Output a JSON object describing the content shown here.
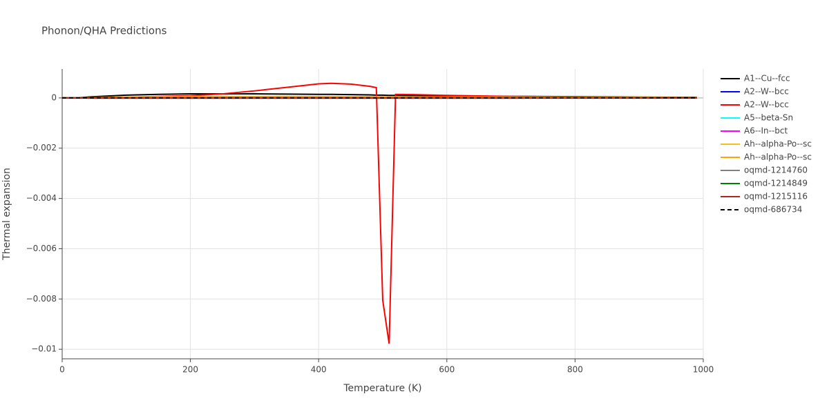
{
  "chart_data": {
    "type": "line",
    "title": "Phonon/QHA Predictions",
    "x_label": "Temperature (K)",
    "y_label": "Thermal expansion",
    "x": [
      0,
      20,
      50,
      100,
      150,
      200,
      250,
      300,
      350,
      400,
      420,
      450,
      480,
      490,
      500,
      510,
      520,
      550,
      600,
      700,
      800,
      900,
      990
    ],
    "series": [
      {
        "name": "A1--Cu--fcc",
        "color": "#000000",
        "values": [
          0,
          0,
          5e-05,
          0.00011,
          0.00014,
          0.00016,
          0.00016,
          0.00016,
          0.00015,
          0.00014,
          0.00014,
          0.00013,
          0.00012,
          0.00011,
          0.00011,
          0.0001,
          0.0001,
          9e-05,
          8e-05,
          6e-05,
          5e-05,
          3e-05,
          2e-05
        ]
      },
      {
        "name": "A2--W--bcc",
        "color": "#0000ff",
        "values": [
          0,
          0,
          0,
          0,
          0,
          0,
          0,
          0,
          0,
          0,
          0,
          0,
          0,
          0,
          0,
          0,
          0,
          0,
          0,
          0,
          0,
          0,
          0
        ]
      },
      {
        "name": "A2--W--bcc",
        "color": "#ff0000",
        "values": [
          0,
          0,
          1e-05,
          3e-05,
          6e-05,
          9e-05,
          0.00016,
          0.00028,
          0.00042,
          0.00056,
          0.00058,
          0.00055,
          0.00046,
          0.00041,
          -0.00805,
          -0.00978,
          0.00014,
          0.00013,
          0.0001,
          6e-05,
          4e-05,
          2e-05,
          1e-05
        ]
      },
      {
        "name": "A5--beta-Sn",
        "color": "#00ffff",
        "values": [
          0,
          0,
          0,
          0,
          0,
          0,
          0,
          0,
          0,
          0,
          0,
          0,
          0,
          0,
          0,
          0,
          0,
          0,
          0,
          0,
          0,
          0,
          0
        ]
      },
      {
        "name": "A6--In--bct",
        "color": "#ff00ff",
        "values": [
          0,
          0,
          0,
          0,
          0,
          0,
          0,
          0,
          0,
          0,
          0,
          0,
          0,
          0,
          0,
          0,
          0,
          0,
          0,
          0,
          0,
          0,
          0
        ]
      },
      {
        "name": "Ah--alpha-Po--sc",
        "color": "#f0c020",
        "values": [
          0,
          0,
          1e-05,
          3e-05,
          5e-05,
          6e-05,
          6e-05,
          6e-05,
          6e-05,
          5e-05,
          5e-05,
          5e-05,
          5e-05,
          4e-05,
          4e-05,
          4e-05,
          4e-05,
          4e-05,
          3e-05,
          3e-05,
          2e-05,
          2e-05,
          1e-05
        ]
      },
      {
        "name": "Ah--alpha-Po--sc",
        "color": "#ffa500",
        "values": [
          0,
          0,
          1e-05,
          2e-05,
          4e-05,
          5e-05,
          5e-05,
          5e-05,
          5e-05,
          5e-05,
          4e-05,
          4e-05,
          4e-05,
          4e-05,
          4e-05,
          3e-05,
          3e-05,
          3e-05,
          3e-05,
          2e-05,
          2e-05,
          1e-05,
          1e-05
        ]
      },
      {
        "name": "oqmd-1214760",
        "color": "#808080",
        "values": [
          0,
          0,
          0,
          0,
          0,
          0,
          0,
          0,
          0,
          0,
          0,
          0,
          0,
          0,
          0,
          0,
          0,
          0,
          0,
          0,
          0,
          0,
          0
        ]
      },
      {
        "name": "oqmd-1214849",
        "color": "#008000",
        "values": [
          0,
          0,
          -1e-05,
          -1e-05,
          -1e-05,
          -1e-05,
          -1e-05,
          -1e-05,
          -1e-05,
          -1e-05,
          -1e-05,
          -1e-05,
          -1e-05,
          -1e-05,
          -1e-05,
          -1e-05,
          -1e-05,
          -1e-05,
          -1e-05,
          -1e-05,
          0,
          0,
          0
        ]
      },
      {
        "name": "oqmd-1215116",
        "color": "#b22222",
        "values": [
          0,
          0,
          0,
          0,
          0,
          0,
          0,
          0,
          0,
          0,
          0,
          0,
          0,
          0,
          0,
          0,
          0,
          0,
          0,
          0,
          0,
          0,
          0
        ]
      },
      {
        "name": "oqmd-686734",
        "color": "#000000",
        "dash": "dash",
        "values": [
          0,
          0,
          0,
          0,
          0,
          0,
          0,
          0,
          0,
          0,
          0,
          0,
          0,
          0,
          0,
          0,
          0,
          0,
          0,
          0,
          0,
          0,
          0
        ]
      }
    ],
    "xlim": [
      0,
      1000
    ],
    "xticks": [
      0,
      200,
      400,
      600,
      800,
      1000
    ],
    "ylim": [
      -0.01038,
      0.00115
    ],
    "yticks": [
      {
        "value": -0.01,
        "label": "−0.01"
      },
      {
        "value": -0.008,
        "label": "−0.008"
      },
      {
        "value": -0.006,
        "label": "−0.006"
      },
      {
        "value": -0.004,
        "label": "−0.004"
      },
      {
        "value": -0.002,
        "label": "−0.002"
      },
      0
    ],
    "grid": true,
    "legend": "right"
  }
}
